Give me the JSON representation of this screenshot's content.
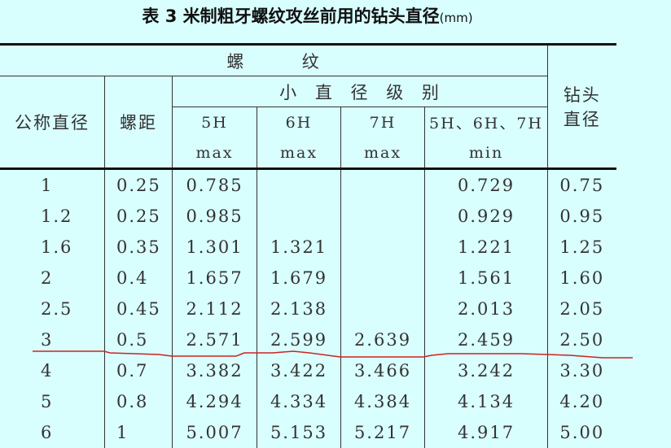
{
  "title": {
    "main": "表 3  米制粗牙螺纹攻丝前用的钻头直径",
    "unit": "(mm)"
  },
  "header": {
    "thread": "螺        纹",
    "minor_diameter_grade": "小 直 径 级 别",
    "nominal_diameter": "公称直径",
    "pitch": "螺距",
    "drill_line1": "钻头",
    "drill_line2": "直径",
    "grades": [
      {
        "grade": "5H",
        "limit": "max"
      },
      {
        "grade": "6H",
        "limit": "max"
      },
      {
        "grade": "7H",
        "limit": "max"
      },
      {
        "grade": "5H、6H、7H",
        "limit": "min"
      }
    ]
  },
  "rows": [
    [
      "1",
      "0.25",
      "0.785",
      "",
      "",
      "0.729",
      "0.75"
    ],
    [
      "1.2",
      "0.25",
      "0.985",
      "",
      "",
      "0.929",
      "0.95"
    ],
    [
      "1.6",
      "0.35",
      "1.301",
      "1.321",
      "",
      "1.221",
      "1.25"
    ],
    [
      "2",
      "0.4",
      "1.657",
      "1.679",
      "",
      "1.561",
      "1.60"
    ],
    [
      "2.5",
      "0.45",
      "2.112",
      "2.138",
      "",
      "2.013",
      "2.05"
    ],
    [
      "3",
      "0.5",
      "2.571",
      "2.599",
      "2.639",
      "2.459",
      "2.50"
    ],
    [
      "4",
      "0.7",
      "3.382",
      "3.422",
      "3.466",
      "3.242",
      "3.30"
    ],
    [
      "5",
      "0.8",
      "4.294",
      "4.334",
      "4.384",
      "4.134",
      "4.20"
    ],
    [
      "6",
      "1",
      "5.007",
      "5.153",
      "5.217",
      "4.917",
      "5.00"
    ]
  ],
  "annotation_color": "#cc2222"
}
